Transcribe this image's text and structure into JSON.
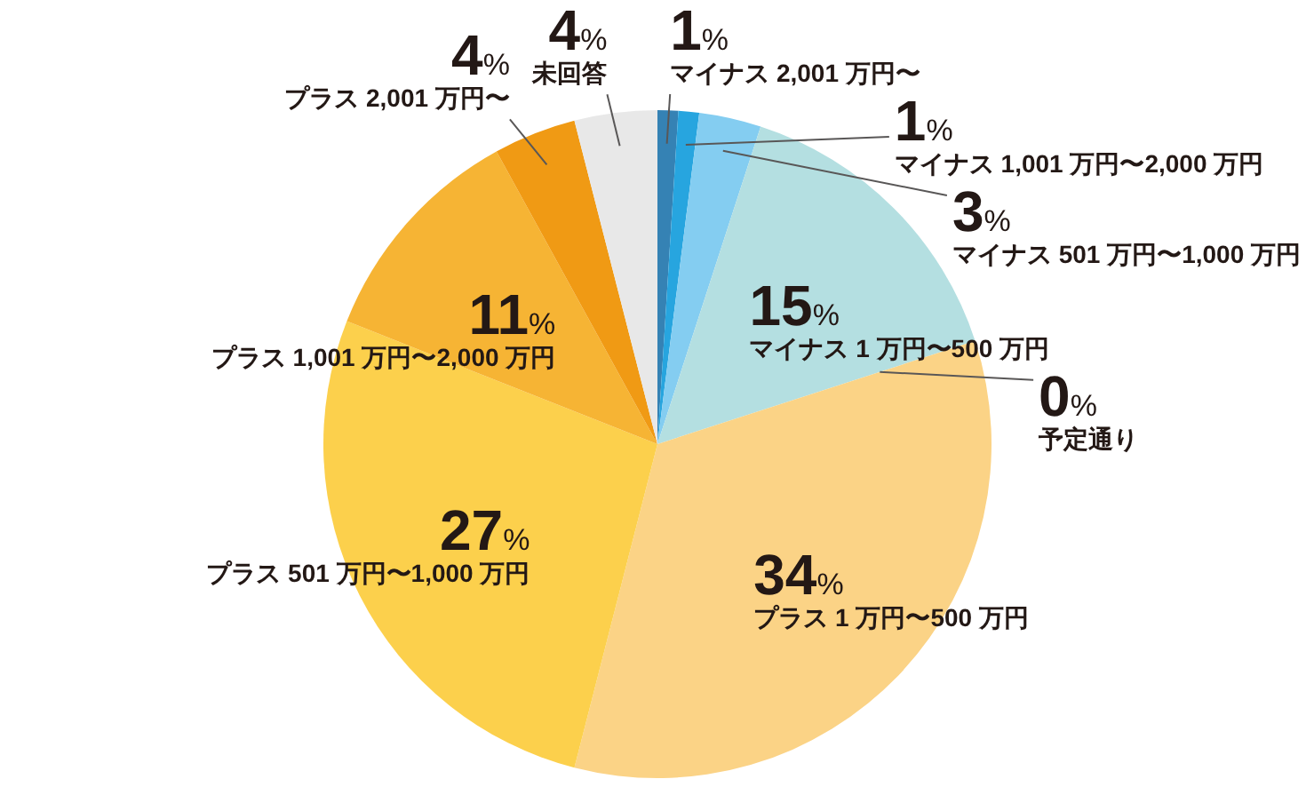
{
  "chart_data": {
    "type": "pie",
    "categories": [
      "マイナス 2,001 万円〜",
      "マイナス 1,001 万円〜2,000 万円",
      "マイナス 501 万円〜1,000 万円",
      "マイナス 1 万円〜500 万円",
      "予定通り",
      "プラス 1 万円〜500 万円",
      "プラス 501 万円〜1,000 万円",
      "プラス 1,001 万円〜2,000 万円",
      "プラス 2,001 万円〜",
      "未回答"
    ],
    "values": [
      1,
      1,
      3,
      15,
      0,
      34,
      27,
      11,
      4,
      4
    ],
    "colors": [
      "#3582b4",
      "#27a5df",
      "#84cdf1",
      "#b4dfe1",
      null,
      "#fbd386",
      "#fcd04c",
      "#f6b434",
      "#f09a14",
      "#e8e8e8"
    ],
    "value_labels": [
      "1%",
      "1%",
      "3%",
      "15%",
      "0%",
      "34%",
      "27%",
      "11%",
      "4%",
      "4%"
    ]
  }
}
